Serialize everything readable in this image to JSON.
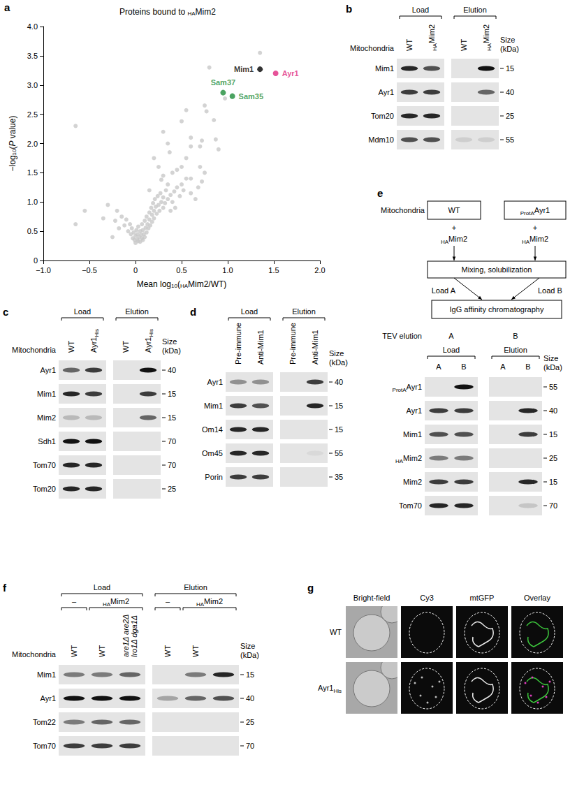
{
  "chart_data": {
    "type": "scatter",
    "title": [
      "Proteins bound to ",
      {
        "sub": "HA"
      },
      "Mim2"
    ],
    "x_label": [
      "Mean log",
      {
        "sub": "10"
      },
      "(",
      {
        "sub": "HA"
      },
      "Mim2/WT)"
    ],
    "y_label": [
      "−log",
      {
        "sub": "10"
      },
      "(",
      {
        "i": "P"
      },
      " value)"
    ],
    "xlim": [
      -1,
      2
    ],
    "xticks": [
      {
        "value": -1,
        "label": "−1.0"
      },
      {
        "value": -0.5,
        "label": "−0.5"
      },
      0,
      0.5,
      {
        "value": 1,
        "label": "1.0"
      },
      1.5,
      {
        "value": 2,
        "label": "2.0"
      }
    ],
    "ylim": [
      0,
      4
    ],
    "yticks": [
      0,
      0.5,
      {
        "value": 1,
        "label": "1.0"
      },
      1.5,
      {
        "value": 2,
        "label": "2.0"
      },
      2.5,
      {
        "value": 3,
        "label": "3.0"
      },
      3.5,
      {
        "value": 4,
        "label": "4.0"
      }
    ],
    "grid": false,
    "series": [
      {
        "color": "#c8c8c8",
        "values": [
          [
            -0.65,
            2.3
          ],
          [
            -0.65,
            0.62
          ],
          [
            -0.55,
            0.85
          ],
          [
            -0.35,
            0.72
          ],
          [
            -0.3,
            0.95
          ],
          [
            -0.25,
            0.4
          ],
          [
            -0.22,
            0.68
          ],
          [
            -0.2,
            0.85
          ],
          [
            -0.18,
            0.55
          ],
          [
            -0.15,
            0.75
          ],
          [
            -0.12,
            0.6
          ],
          [
            -0.1,
            0.7
          ],
          [
            -0.08,
            0.5
          ],
          [
            -0.06,
            0.62
          ],
          [
            -0.05,
            0.45
          ],
          [
            -0.04,
            0.55
          ],
          [
            -0.03,
            0.38
          ],
          [
            -0.02,
            0.48
          ],
          [
            -0.01,
            0.35
          ],
          [
            0.0,
            0.42
          ],
          [
            0.0,
            0.3
          ],
          [
            0.01,
            0.52
          ],
          [
            0.02,
            0.36
          ],
          [
            0.02,
            0.45
          ],
          [
            0.03,
            0.33
          ],
          [
            0.03,
            0.58
          ],
          [
            0.04,
            0.4
          ],
          [
            0.05,
            0.5
          ],
          [
            0.05,
            0.32
          ],
          [
            0.06,
            0.44
          ],
          [
            0.07,
            0.38
          ],
          [
            0.07,
            0.62
          ],
          [
            0.08,
            0.35
          ],
          [
            0.08,
            0.52
          ],
          [
            0.09,
            0.45
          ],
          [
            0.1,
            0.4
          ],
          [
            0.1,
            0.68
          ],
          [
            0.11,
            0.56
          ],
          [
            0.12,
            0.48
          ],
          [
            0.12,
            0.75
          ],
          [
            0.13,
            0.62
          ],
          [
            0.14,
            0.55
          ],
          [
            0.15,
            0.82
          ],
          [
            0.15,
            0.7
          ],
          [
            0.16,
            0.6
          ],
          [
            0.17,
            0.9
          ],
          [
            0.18,
            0.78
          ],
          [
            0.18,
            0.66
          ],
          [
            0.19,
            0.98
          ],
          [
            0.2,
            0.85
          ],
          [
            0.2,
            0.72
          ],
          [
            0.21,
            1.05
          ],
          [
            0.22,
            0.92
          ],
          [
            0.23,
            0.8
          ],
          [
            0.24,
            1.1
          ],
          [
            0.25,
            0.95
          ],
          [
            0.26,
            0.85
          ],
          [
            0.27,
            1.15
          ],
          [
            0.28,
            1.0
          ],
          [
            0.3,
            0.9
          ],
          [
            0.3,
            1.08
          ],
          [
            0.32,
            0.98
          ],
          [
            0.33,
            1.2
          ],
          [
            0.35,
            1.3
          ],
          [
            0.35,
            1.05
          ],
          [
            0.38,
            1.12
          ],
          [
            0.4,
            1.0
          ],
          [
            0.42,
            1.18
          ],
          [
            0.45,
            1.25
          ],
          [
            0.48,
            1.1
          ],
          [
            0.5,
            1.3
          ],
          [
            0.52,
            1.2
          ],
          [
            0.55,
            1.4
          ],
          [
            0.28,
            1.38
          ],
          [
            0.3,
            1.45
          ],
          [
            0.15,
            1.2
          ],
          [
            0.4,
            1.5
          ],
          [
            0.45,
            1.55
          ],
          [
            0.5,
            1.6
          ],
          [
            0.25,
            1.6
          ],
          [
            0.2,
            1.75
          ],
          [
            0.55,
            1.75
          ],
          [
            0.6,
            1.4
          ],
          [
            0.68,
            1.25
          ],
          [
            0.72,
            1.35
          ],
          [
            0.75,
            1.5
          ],
          [
            0.7,
            1.6
          ],
          [
            0.37,
            1.85
          ],
          [
            0.35,
            2.0
          ],
          [
            0.3,
            2.2
          ],
          [
            0.6,
            1.95
          ],
          [
            0.6,
            2.1
          ],
          [
            0.7,
            1.95
          ],
          [
            0.72,
            2.05
          ],
          [
            0.87,
            2.07
          ],
          [
            0.9,
            1.9
          ],
          [
            0.85,
            2.4
          ],
          [
            0.5,
            2.38
          ],
          [
            0.55,
            2.57
          ],
          [
            0.75,
            2.65
          ],
          [
            0.77,
            2.55
          ],
          [
            0.97,
            2.77
          ],
          [
            0.8,
            3.3
          ],
          [
            1.35,
            3.55
          ],
          [
            0.6,
            1.15
          ],
          [
            0.65,
            1.05
          ],
          [
            0.43,
            0.9
          ],
          [
            0.38,
            0.85
          ]
        ]
      },
      {
        "name": "Mim1",
        "color": "#000000",
        "values": [
          [
            1.35,
            3.27
          ]
        ]
      },
      {
        "name": "Ayr1",
        "color": "#e0287f",
        "values": [
          [
            1.52,
            3.2
          ]
        ]
      },
      {
        "name": "Sam37",
        "color": "#1e8c3a",
        "values": [
          [
            0.95,
            2.87
          ]
        ]
      },
      {
        "name": "Sam35",
        "color": "#1e8c3a",
        "values": [
          [
            1.05,
            2.81
          ]
        ]
      }
    ]
  },
  "panels": [
    {
      "letter": "a",
      "kind": "chart"
    },
    {
      "letter": "b",
      "kind": "blot",
      "lane_title": "Mitochondria",
      "header_groups": [
        {
          "text": "Load",
          "lanes": [
            0,
            1
          ]
        },
        {
          "text": "Elution",
          "lanes": [
            2,
            3
          ]
        }
      ],
      "lanes": [
        "WT",
        [
          {
            "sub": "HA"
          },
          "Mim2"
        ],
        "WT",
        [
          {
            "sub": "HA"
          },
          "Mim2"
        ]
      ],
      "size_title": "Size (kDa)",
      "rows": [
        {
          "label": "Mim1",
          "size": 15,
          "bands": [
            0.9,
            0.7,
            0,
            1
          ]
        },
        {
          "label": "Ayr1",
          "size": 40,
          "bands": [
            0.8,
            0.8,
            0,
            0.6
          ]
        },
        {
          "label": "Tom20",
          "size": 25,
          "bands": [
            0.9,
            0.9,
            0,
            0
          ]
        },
        {
          "label": "Mdm10",
          "size": 55,
          "bands": [
            0.7,
            0.7,
            0.1,
            0.1
          ]
        }
      ]
    },
    {
      "letter": "c",
      "kind": "blot",
      "lane_title": "Mitochondria",
      "header_groups": [
        {
          "text": "Load",
          "lanes": [
            0,
            1
          ]
        },
        {
          "text": "Elution",
          "lanes": [
            2,
            3
          ]
        }
      ],
      "lanes": [
        "WT",
        [
          "Ayr1",
          {
            "sub": "His"
          }
        ],
        "WT",
        [
          "Ayr1",
          {
            "sub": "His"
          }
        ]
      ],
      "size_title": "Size (kDa)",
      "rows": [
        {
          "label": "Ayr1",
          "size": 40,
          "bands": [
            0.6,
            0.8,
            0,
            1
          ]
        },
        {
          "label": "Mim1",
          "size": 15,
          "bands": [
            0.9,
            0.8,
            0,
            0.8
          ]
        },
        {
          "label": "Mim2",
          "size": 15,
          "bands": [
            0.2,
            0.2,
            0,
            0.6
          ]
        },
        {
          "label": "Sdh1",
          "size": 70,
          "bands": [
            1,
            1,
            0,
            0
          ]
        },
        {
          "label": "Tom70",
          "size": 70,
          "bands": [
            0.9,
            0.9,
            0,
            0
          ]
        },
        {
          "label": "Tom20",
          "size": 25,
          "bands": [
            0.9,
            0.9,
            0,
            0
          ]
        }
      ]
    },
    {
      "letter": "d",
      "kind": "blot",
      "header_groups": [
        {
          "text": "Load",
          "lanes": [
            0,
            1
          ]
        },
        {
          "text": "Elution",
          "lanes": [
            2,
            3
          ]
        }
      ],
      "lanes": [
        "Pre-immune",
        "Anti-Mim1",
        "Pre-immune",
        "Anti-Mim1"
      ],
      "size_title": "Size (kDa)",
      "rows": [
        {
          "label": "Ayr1",
          "size": 40,
          "bands": [
            0.4,
            0.4,
            0,
            0.8
          ]
        },
        {
          "label": "Mim1",
          "size": 15,
          "bands": [
            0.8,
            0.7,
            0,
            0.9
          ]
        },
        {
          "label": "Om14",
          "size": 15,
          "bands": [
            0.9,
            0.9,
            0,
            0
          ]
        },
        {
          "label": "Om45",
          "size": 55,
          "bands": [
            0.9,
            0.9,
            0,
            0.05
          ]
        },
        {
          "label": "Porin",
          "size": 35,
          "bands": [
            0.8,
            0.8,
            0,
            0
          ]
        }
      ]
    },
    {
      "letter": "e",
      "kind": "blot",
      "flow": {
        "row_label": "Mitochondria",
        "left": [
          "WT",
          "+",
          [
            {
              "sub": "HA"
            },
            "Mim2"
          ]
        ],
        "right": [
          [
            {
              "sub": "ProtA"
            },
            "Ayr1"
          ],
          "+",
          [
            {
              "sub": "HA"
            },
            "Mim2"
          ]
        ],
        "mix": "Mixing, solubilization",
        "load_a": "Load A",
        "load_b": "Load B",
        "column": "IgG affinity chromatography"
      },
      "tev": {
        "label": "TEV elution",
        "marks": [
          "A",
          "B"
        ]
      },
      "header_groups": [
        {
          "text": "Load",
          "lanes": [
            0,
            1
          ]
        },
        {
          "text": "Elution",
          "lanes": [
            2,
            3
          ]
        }
      ],
      "lanes": [
        "A",
        "B",
        "A",
        "B"
      ],
      "size_title": "Size (kDa)",
      "rows": [
        {
          "label": [
            {
              "sub": "ProtA"
            },
            "Ayr1"
          ],
          "size": 55,
          "bands": [
            0,
            1,
            0,
            0
          ]
        },
        {
          "label": "Ayr1",
          "size": 40,
          "bands": [
            0.8,
            0.8,
            0,
            0.9
          ]
        },
        {
          "label": "Mim1",
          "size": 15,
          "bands": [
            0.7,
            0.7,
            0,
            0.8
          ]
        },
        {
          "label": [
            {
              "sub": "HA"
            },
            "Mim2"
          ],
          "size": 25,
          "bands": [
            0.5,
            0.5,
            0,
            0
          ]
        },
        {
          "label": "Mim2",
          "size": 15,
          "bands": [
            0.8,
            0.8,
            0,
            0.9
          ]
        },
        {
          "label": "Tom70",
          "size": 70,
          "bands": [
            0.9,
            0.9,
            0,
            0.15
          ]
        }
      ]
    },
    {
      "letter": "f",
      "kind": "blot",
      "lane_title": "Mitochondria",
      "header_groups": [
        {
          "text": "Load",
          "lanes": [
            0,
            2
          ]
        },
        {
          "text": "Elution",
          "lanes": [
            3,
            5
          ]
        }
      ],
      "subgroups": [
        {
          "text": "–",
          "lanes": [
            0,
            0
          ]
        },
        {
          "text": [
            {
              "sub": "HA"
            },
            "Mim2"
          ],
          "lanes": [
            1,
            2
          ]
        },
        {
          "text": "–",
          "lanes": [
            3,
            3
          ]
        },
        {
          "text": [
            {
              "sub": "HA"
            },
            "Mim2"
          ],
          "lanes": [
            4,
            5
          ]
        }
      ],
      "lanes": [
        "WT",
        "WT",
        [
          {
            "i": "are1Δ are2Δ lro1Δ dga1Δ"
          }
        ],
        "WT",
        "WT",
        null
      ],
      "size_title": "Size (kDa)",
      "rows": [
        {
          "label": "Mim1",
          "size": 15,
          "bands": [
            0.5,
            0.5,
            0.6,
            0,
            0.5,
            0.9
          ]
        },
        {
          "label": "Ayr1",
          "size": 40,
          "bands": [
            1,
            1,
            1,
            0.3,
            0.6,
            0.7
          ]
        },
        {
          "label": "Tom22",
          "size": 25,
          "bands": [
            0.5,
            0.6,
            0.6,
            0,
            0,
            0
          ]
        },
        {
          "label": "Tom70",
          "size": 70,
          "bands": [
            0.8,
            0.8,
            0.8,
            0,
            0,
            0
          ]
        }
      ]
    },
    {
      "letter": "g",
      "kind": "images",
      "columns": [
        "Bright-field",
        "Cy3",
        "mtGFP",
        "Overlay"
      ],
      "rows": [
        "WT",
        [
          "Ayr1",
          {
            "sub": "His"
          }
        ]
      ]
    }
  ]
}
